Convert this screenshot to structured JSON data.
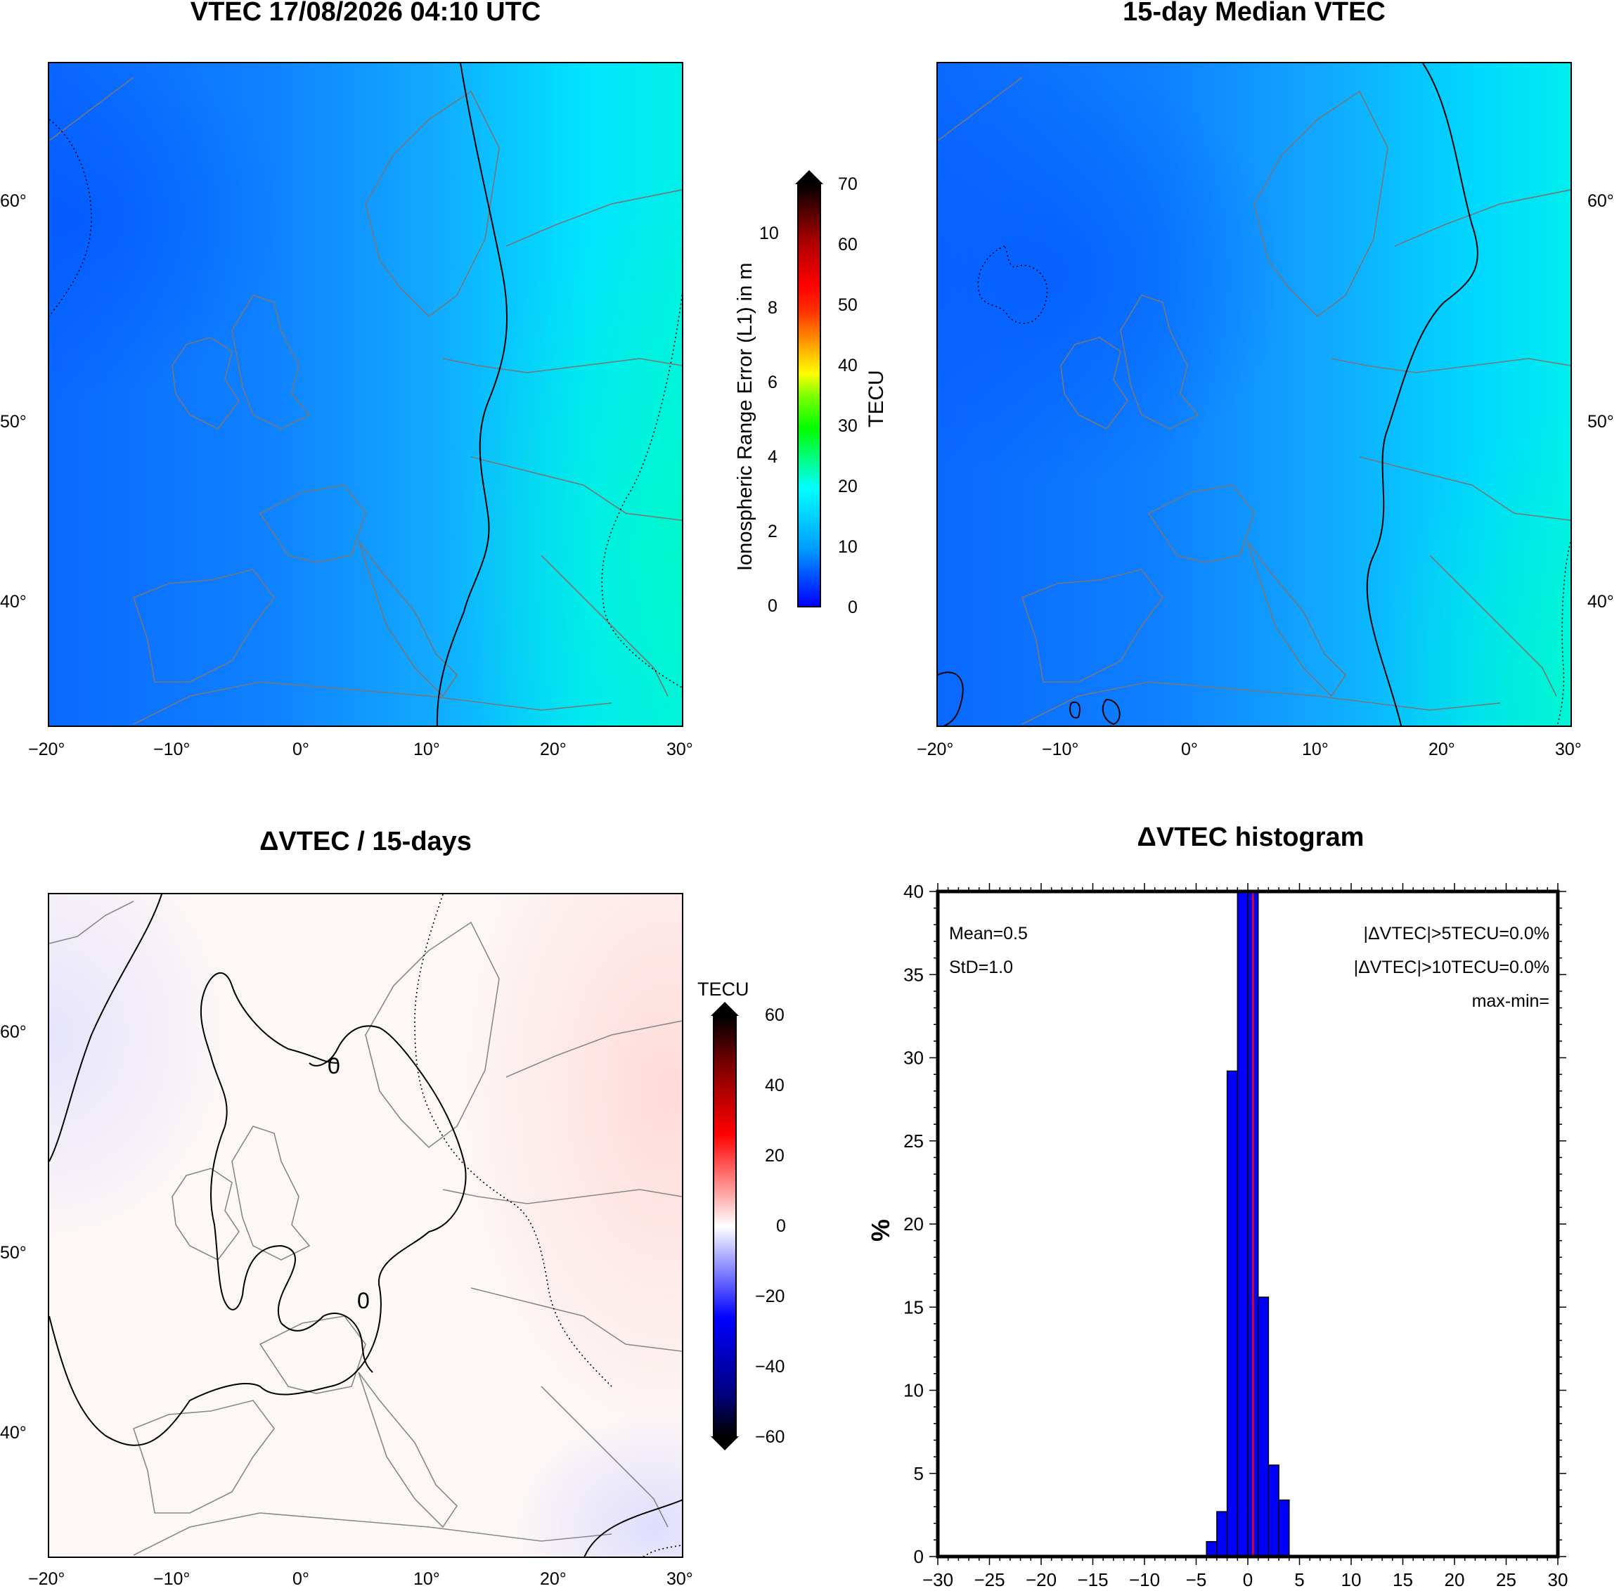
{
  "panels": {
    "vtec_title": "VTEC 17/08/2026 04:10 UTC",
    "median_title": "15-day Median VTEC",
    "delta_title": "ΔVTEC / 15-days",
    "hist_title": "ΔVTEC histogram"
  },
  "map_axes": {
    "lon_ticks": [
      "−20°",
      "−10°",
      "0°",
      "10°",
      "20°",
      "30°"
    ],
    "lat_ticks": [
      "60°",
      "50°",
      "40°"
    ]
  },
  "vtec_colorbar": {
    "left_label": "Ionospheric Range Error (L1) in m",
    "right_label": "TECU",
    "meter_ticks": [
      "10",
      "8",
      "6",
      "4",
      "2",
      "0"
    ],
    "tecu_ticks": [
      "70",
      "60",
      "50",
      "40",
      "30",
      "20",
      "10",
      "0"
    ]
  },
  "delta_colorbar": {
    "unit": "TECU",
    "ticks": [
      "60",
      "40",
      "20",
      "0",
      "−20",
      "−40",
      "−60"
    ]
  },
  "delta_contour_label": "0",
  "histogram": {
    "ylabel": "%",
    "mean": "Mean=0.5",
    "std": "StD=1.0",
    "gt5": "|ΔVTEC|>5TECU=0.0%",
    "gt10": "|ΔVTEC|>10TECU=0.0%",
    "maxmin": "max-min=",
    "colors": {
      "bar": "#0000ff",
      "mean_line": "#ff0000"
    }
  },
  "chart_data": {
    "type": "bar",
    "x": [
      -3.5,
      -2.5,
      -1.5,
      -0.5,
      0.5,
      1.5,
      2.5,
      3.5
    ],
    "values": [
      0.9,
      2.7,
      29.2,
      40,
      40,
      15.6,
      5.5,
      3.4
    ],
    "xlim": [
      -30,
      30
    ],
    "ylim": [
      0,
      40
    ],
    "x_ticks": [
      "−30",
      "−25",
      "−20",
      "−15",
      "−10",
      "−5",
      "0",
      "5",
      "10",
      "15",
      "20",
      "25",
      "30"
    ],
    "y_ticks": [
      "40",
      "35",
      "30",
      "25",
      "20",
      "15",
      "10",
      "5",
      "0"
    ],
    "mean": 0.5,
    "ylabel": "%"
  }
}
